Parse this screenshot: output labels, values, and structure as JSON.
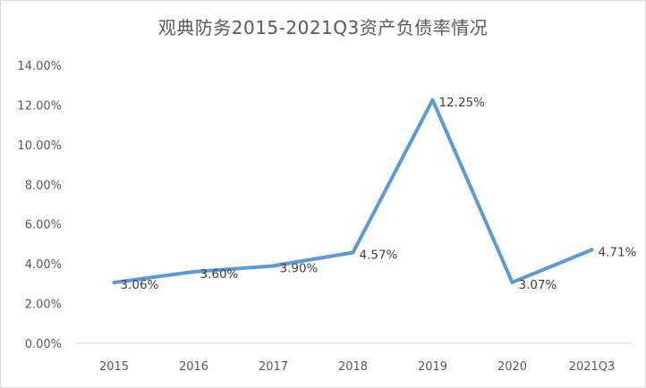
{
  "chart_data": {
    "type": "line",
    "title": "观典防务2015-2021Q3资产负债率情况",
    "categories": [
      "2015",
      "2016",
      "2017",
      "2018",
      "2019",
      "2020",
      "2021Q3"
    ],
    "series": [
      {
        "values": [
          3.06,
          3.6,
          3.9,
          4.57,
          12.25,
          3.07,
          4.71
        ],
        "labels": [
          "3.06%",
          "3.60%",
          "3.90%",
          "4.57%",
          "12.25%",
          "3.07%",
          "4.71%"
        ],
        "color": "#5b9bd5"
      }
    ],
    "ylim": [
      0,
      14
    ],
    "yticks": [
      "0.00%",
      "2.00%",
      "4.00%",
      "6.00%",
      "8.00%",
      "10.00%",
      "12.00%",
      "14.00%"
    ],
    "grid": false,
    "legend": "none"
  }
}
